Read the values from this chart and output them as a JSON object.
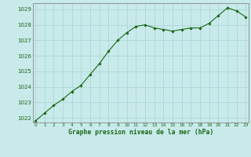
{
  "x": [
    0,
    1,
    2,
    3,
    4,
    5,
    6,
    7,
    8,
    9,
    10,
    11,
    12,
    13,
    14,
    15,
    16,
    17,
    18,
    19,
    20,
    21,
    22,
    23
  ],
  "y": [
    1021.8,
    1022.3,
    1022.8,
    1023.2,
    1023.7,
    1024.1,
    1024.8,
    1025.5,
    1026.3,
    1027.0,
    1027.5,
    1027.9,
    1028.0,
    1027.8,
    1027.7,
    1027.6,
    1027.7,
    1027.8,
    1027.8,
    1028.1,
    1028.6,
    1029.1,
    1028.9,
    1028.5
  ],
  "ylim": [
    1021.7,
    1029.4
  ],
  "yticks": [
    1022,
    1023,
    1024,
    1025,
    1026,
    1027,
    1028,
    1029
  ],
  "xticks": [
    0,
    1,
    2,
    3,
    4,
    5,
    6,
    7,
    8,
    9,
    10,
    11,
    12,
    13,
    14,
    15,
    16,
    17,
    18,
    19,
    20,
    21,
    22,
    23
  ],
  "line_color": "#1a6614",
  "marker_color": "#1a6614",
  "bg_color": "#c8eaea",
  "grid_color": "#a8d4d4",
  "xlabel": "Graphe pression niveau de la mer (hPa)",
  "xlabel_color": "#1a6614",
  "tick_color": "#1a6614",
  "border_color": "#888888"
}
